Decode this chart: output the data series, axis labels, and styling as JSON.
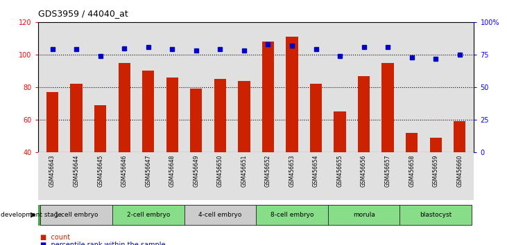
{
  "title": "GDS3959 / 44040_at",
  "samples": [
    "GSM456643",
    "GSM456644",
    "GSM456645",
    "GSM456646",
    "GSM456647",
    "GSM456648",
    "GSM456649",
    "GSM456650",
    "GSM456651",
    "GSM456652",
    "GSM456653",
    "GSM456654",
    "GSM456655",
    "GSM456656",
    "GSM456657",
    "GSM456658",
    "GSM456659",
    "GSM456660"
  ],
  "counts": [
    77,
    82,
    69,
    95,
    90,
    86,
    79,
    85,
    84,
    108,
    111,
    82,
    65,
    87,
    95,
    52,
    49,
    59
  ],
  "percentile_ranks": [
    79,
    79,
    74,
    80,
    81,
    79,
    78,
    79,
    78,
    83,
    82,
    79,
    74,
    81,
    81,
    73,
    72,
    75
  ],
  "stages": [
    {
      "label": "1-cell embryo",
      "start": 0,
      "end": 3,
      "color": "#cccccc"
    },
    {
      "label": "2-cell embryo",
      "start": 3,
      "end": 6,
      "color": "#88dd88"
    },
    {
      "label": "4-cell embryo",
      "start": 6,
      "end": 9,
      "color": "#cccccc"
    },
    {
      "label": "8-cell embryo",
      "start": 9,
      "end": 12,
      "color": "#88dd88"
    },
    {
      "label": "morula",
      "start": 12,
      "end": 15,
      "color": "#88dd88"
    },
    {
      "label": "blastocyst",
      "start": 15,
      "end": 18,
      "color": "#88dd88"
    }
  ],
  "ylim_left": [
    40,
    120
  ],
  "ylim_right": [
    0,
    100
  ],
  "yticks_left": [
    40,
    60,
    80,
    100,
    120
  ],
  "yticks_right": [
    0,
    25,
    50,
    75,
    100
  ],
  "ytick_labels_right": [
    "0",
    "25",
    "50",
    "75",
    "100%"
  ],
  "gridlines_at": [
    60,
    80,
    100
  ],
  "bar_color": "#cc2200",
  "dot_color": "#0000cc",
  "plot_bg_color": "#e0e0e0",
  "separator_color": "#444444",
  "stage_separator_color": "#228822",
  "bar_width": 0.5
}
